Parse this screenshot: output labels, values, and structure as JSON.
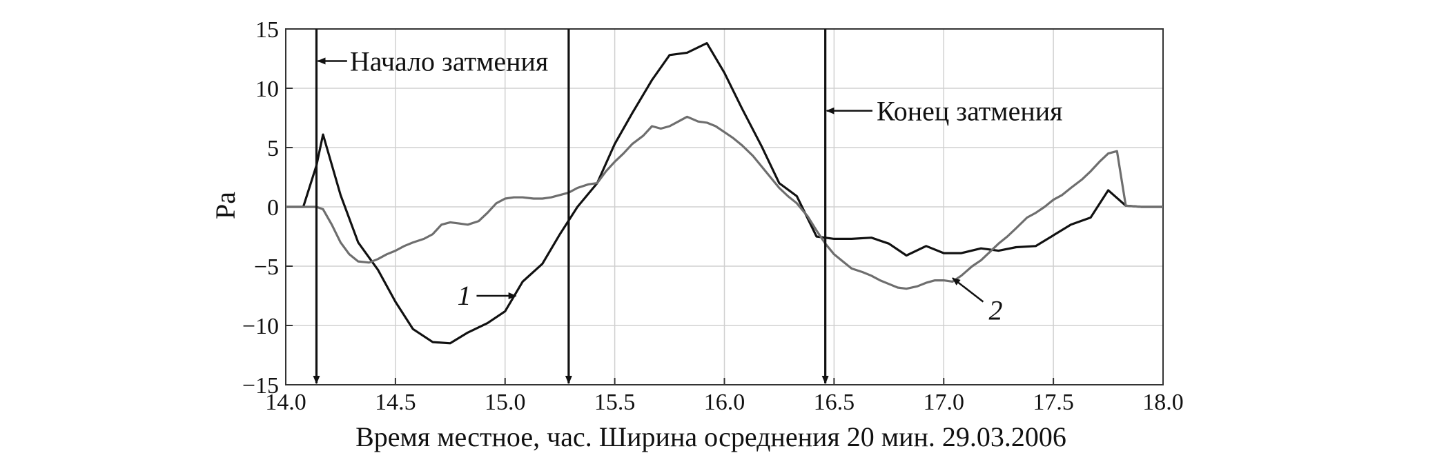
{
  "chart_data": {
    "type": "line",
    "title": "",
    "xlabel": "Время местное, час. Ширина осреднения 20 мин. 29.03.2006",
    "ylabel": "Pa",
    "xlim": [
      14.0,
      18.0
    ],
    "ylim": [
      -15,
      15
    ],
    "xticks": [
      14.0,
      14.5,
      15.0,
      15.5,
      16.0,
      16.5,
      17.0,
      17.5,
      18.0
    ],
    "xtick_labels": [
      "14.0",
      "14.5",
      "15.0",
      "15.5",
      "16.0",
      "16.5",
      "17.0",
      "17.5",
      "18.0"
    ],
    "yticks": [
      15,
      10,
      5,
      0,
      -5,
      -10,
      -15
    ],
    "ytick_labels": [
      "15",
      "10",
      "5",
      "0",
      "−5",
      "−10",
      "−15"
    ],
    "grid": true,
    "colors": {
      "series1": "#111111",
      "series2": "#6e6e6e",
      "axes": "#333333"
    },
    "series": [
      {
        "label": "1",
        "x": [
          14.0,
          14.08,
          14.14,
          14.17,
          14.25,
          14.33,
          14.42,
          14.5,
          14.58,
          14.67,
          14.75,
          14.83,
          14.92,
          15.0,
          15.08,
          15.17,
          15.25,
          15.33,
          15.42,
          15.5,
          15.58,
          15.67,
          15.75,
          15.83,
          15.92,
          16.0,
          16.08,
          16.17,
          16.25,
          16.33,
          16.42,
          16.5,
          16.58,
          16.67,
          16.75,
          16.83,
          16.92,
          17.0,
          17.08,
          17.17,
          17.25,
          17.33,
          17.42,
          17.5,
          17.58,
          17.67,
          17.75,
          17.83,
          17.9,
          18.0
        ],
        "y": [
          0,
          0,
          3.5,
          6.1,
          1.0,
          -3.0,
          -5.3,
          -8.0,
          -10.3,
          -11.4,
          -11.5,
          -10.6,
          -9.8,
          -8.8,
          -6.3,
          -4.8,
          -2.3,
          0.0,
          2.0,
          5.3,
          7.9,
          10.7,
          12.8,
          13.0,
          13.8,
          11.3,
          8.3,
          5.1,
          2.0,
          0.9,
          -2.5,
          -2.7,
          -2.7,
          -2.6,
          -3.1,
          -4.1,
          -3.3,
          -3.9,
          -3.9,
          -3.5,
          -3.7,
          -3.4,
          -3.3,
          -2.4,
          -1.5,
          -0.9,
          1.4,
          0.1,
          0,
          0
        ]
      },
      {
        "label": "2",
        "x": [
          14.0,
          14.08,
          14.14,
          14.17,
          14.21,
          14.25,
          14.29,
          14.33,
          14.38,
          14.42,
          14.46,
          14.5,
          14.54,
          14.58,
          14.63,
          14.67,
          14.71,
          14.75,
          14.79,
          14.83,
          14.88,
          14.92,
          14.96,
          15.0,
          15.04,
          15.08,
          15.13,
          15.17,
          15.21,
          15.25,
          15.29,
          15.33,
          15.38,
          15.42,
          15.46,
          15.5,
          15.54,
          15.58,
          15.63,
          15.67,
          15.71,
          15.75,
          15.79,
          15.83,
          15.88,
          15.92,
          15.96,
          16.0,
          16.04,
          16.08,
          16.13,
          16.17,
          16.21,
          16.25,
          16.29,
          16.33,
          16.38,
          16.42,
          16.46,
          16.5,
          16.54,
          16.58,
          16.63,
          16.67,
          16.71,
          16.75,
          16.79,
          16.83,
          16.88,
          16.92,
          16.96,
          17.0,
          17.04,
          17.08,
          17.13,
          17.17,
          17.21,
          17.25,
          17.29,
          17.33,
          17.38,
          17.42,
          17.46,
          17.5,
          17.54,
          17.58,
          17.63,
          17.67,
          17.71,
          17.75,
          17.79,
          17.83,
          17.9,
          18.0
        ],
        "y": [
          0,
          0,
          0,
          -0.2,
          -1.5,
          -3.0,
          -4.0,
          -4.6,
          -4.7,
          -4.4,
          -4.0,
          -3.7,
          -3.3,
          -3.0,
          -2.7,
          -2.3,
          -1.5,
          -1.3,
          -1.4,
          -1.5,
          -1.2,
          -0.5,
          0.3,
          0.7,
          0.8,
          0.8,
          0.7,
          0.7,
          0.8,
          1.0,
          1.2,
          1.6,
          1.9,
          2.0,
          3.0,
          3.8,
          4.5,
          5.3,
          6.0,
          6.8,
          6.6,
          6.8,
          7.2,
          7.6,
          7.2,
          7.1,
          6.8,
          6.3,
          5.8,
          5.2,
          4.3,
          3.4,
          2.5,
          1.6,
          0.9,
          0.3,
          -0.8,
          -2.0,
          -3.1,
          -4.0,
          -4.6,
          -5.2,
          -5.5,
          -5.8,
          -6.2,
          -6.5,
          -6.8,
          -6.9,
          -6.7,
          -6.4,
          -6.2,
          -6.2,
          -6.3,
          -5.8,
          -5.0,
          -4.5,
          -3.8,
          -3.1,
          -2.5,
          -1.8,
          -0.9,
          -0.5,
          0.0,
          0.6,
          1.0,
          1.6,
          2.3,
          3.0,
          3.8,
          4.5,
          4.7,
          0.1,
          0,
          0
        ]
      }
    ],
    "vertical_lines": [
      14.14,
      15.29,
      16.46
    ],
    "annotations": [
      {
        "text": "Начало затмения",
        "x": 14.16,
        "y": 12.3
      },
      {
        "text": "Конец затмения",
        "x": 16.48,
        "y": 8.1
      },
      {
        "text": "1",
        "x": 14.87,
        "y": -7.5
      },
      {
        "text": "2",
        "x": 17.18,
        "y": -8.7
      }
    ]
  }
}
